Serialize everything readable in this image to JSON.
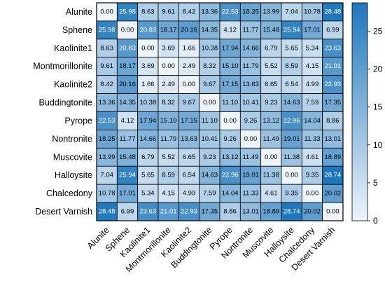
{
  "chart_data": {
    "type": "heatmap",
    "rows": [
      "Alunite",
      "Sphene",
      "Kaolinite1",
      "Montmorillonite",
      "Kaolinite2",
      "Buddingtonite",
      "Pyrope",
      "Nontronite",
      "Muscovite",
      "Halloysite",
      "Chalcedony",
      "Desert Varnish"
    ],
    "columns": [
      "Alunite",
      "Sphene",
      "Kaolinite1",
      "Montmorillonite",
      "Kaolinite2",
      "Buddingtonite",
      "Pyrope",
      "Nontronite",
      "Muscovite",
      "Halloysite",
      "Chalcedony",
      "Desert Varnish"
    ],
    "values": [
      [
        "0.00",
        "25.98",
        "8.63",
        "9.61",
        "8.42",
        "13.36",
        "22.53",
        "18.25",
        "13.99",
        "7.04",
        "10.78",
        "28.48"
      ],
      [
        "25.98",
        "0.00",
        "20.83",
        "18.17",
        "20.16",
        "14.35",
        "4.12",
        "11.77",
        "15.48",
        "25.94",
        "17.01",
        "6.99"
      ],
      [
        "8.63",
        "20.83",
        "0.00",
        "3.69",
        "1.66",
        "10.38",
        "17.94",
        "14.66",
        "6.79",
        "5.65",
        "5.34",
        "23.63"
      ],
      [
        "9.61",
        "18.17",
        "3.69",
        "0.00",
        "2.49",
        "8.32",
        "15.10",
        "11.79",
        "5.52",
        "8.59",
        "4.15",
        "21.01"
      ],
      [
        "8.42",
        "20.16",
        "1.66",
        "2.49",
        "0.00",
        "9.67",
        "17.15",
        "13.63",
        "6.65",
        "6.54",
        "4.99",
        "22.93"
      ],
      [
        "13.36",
        "14.35",
        "10.38",
        "8.32",
        "9.67",
        "0.00",
        "11.10",
        "10.41",
        "9.23",
        "14.63",
        "7.59",
        "17.35"
      ],
      [
        "22.53",
        "4.12",
        "17.94",
        "15.10",
        "17.15",
        "11.10",
        "0.00",
        "9.26",
        "13.12",
        "22.96",
        "14.04",
        "8.86"
      ],
      [
        "18.25",
        "11.77",
        "14.66",
        "11.79",
        "13.63",
        "10.41",
        "9.26",
        "0.00",
        "11.49",
        "19.01",
        "11.33",
        "13.01"
      ],
      [
        "13.99",
        "15.48",
        "6.79",
        "5.52",
        "6.65",
        "9.23",
        "13.12",
        "11.49",
        "0.00",
        "11.38",
        "4.61",
        "18.89"
      ],
      [
        "7.04",
        "25.94",
        "5.65",
        "8.59",
        "6.54",
        "14.63",
        "22.96",
        "19.01",
        "11.38",
        "0.00",
        "9.35",
        "28.74"
      ],
      [
        "10.78",
        "17.01",
        "5.34",
        "4.15",
        "4.99",
        "7.59",
        "14.04",
        "11.33",
        "4.61",
        "9.35",
        "0.00",
        "20.02"
      ],
      [
        "28.48",
        "6.99",
        "23.63",
        "21.01",
        "22.93",
        "17.35",
        "8.86",
        "13.01",
        "18.89",
        "28.74",
        "20.02",
        "0.00"
      ]
    ],
    "colorbar": {
      "range": [
        0,
        28.74
      ],
      "ticks": [
        "0",
        "5",
        "10",
        "15",
        "20",
        "25"
      ]
    },
    "colors": {
      "low": "#eef4fb",
      "high": "#1f77bb"
    },
    "title": "",
    "xlabel": "",
    "ylabel": ""
  }
}
